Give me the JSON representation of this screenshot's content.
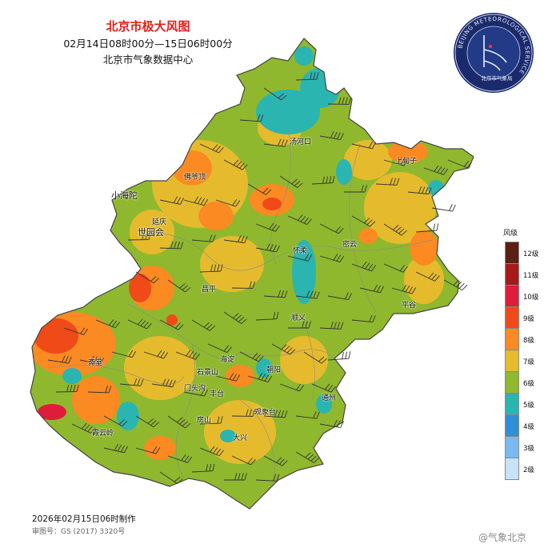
{
  "header": {
    "title": "北京市极大风图",
    "subtitle": "02月14日08时00分—15日06时00分",
    "org": "北京市气象数据中心"
  },
  "logo": {
    "ring_text": "BEIJING METEOROLOGICAL SERVICE",
    "name": "北京市气象局"
  },
  "legend": {
    "title": "风级",
    "levels": [
      {
        "label": "12级",
        "color": "#5b1f13"
      },
      {
        "label": "11级",
        "color": "#a8191a"
      },
      {
        "label": "10级",
        "color": "#e11b3c"
      },
      {
        "label": "9级",
        "color": "#f04a19"
      },
      {
        "label": "8级",
        "color": "#fb8a22"
      },
      {
        "label": "7级",
        "color": "#e5bb2d"
      },
      {
        "label": "6级",
        "color": "#8fb82e"
      },
      {
        "label": "5级",
        "color": "#2ab5b0"
      },
      {
        "label": "4级",
        "color": "#2e8fd6"
      },
      {
        "label": "3级",
        "color": "#7ab9ef"
      },
      {
        "label": "2级",
        "color": "#c6e3f7"
      }
    ]
  },
  "places": {
    "tanghekou": "汤河口",
    "shangdianzi": "上甸子",
    "xiaohaituo": "小海陀",
    "foyeding": "佛爷顶",
    "yanqing": "延庆",
    "shiyuanhui": "世园会",
    "huairou": "怀柔",
    "miyun": "密云",
    "pinggu": "平谷",
    "changping": "昌平",
    "shunyi": "顺义",
    "zhaitang": "斋堂",
    "haidian": "海淀",
    "chaoyang": "朝阳",
    "shijingshan": "石景山",
    "mentougou": "门头沟",
    "fengtai": "丰台",
    "tongzhou": "通州",
    "fangshan": "房山",
    "guanxiangtai": "观象台",
    "xiayunling": "霞云岭",
    "daxing": "大兴"
  },
  "footer": {
    "made": "2026年02月15日06时制作",
    "approval": "审图号：GS (2017) 3320号",
    "weibo": "@气象北京"
  }
}
